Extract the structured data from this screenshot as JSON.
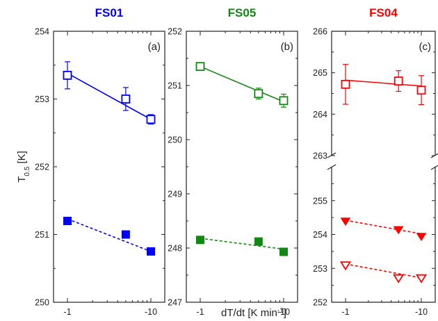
{
  "figure": {
    "ylabel_main": "T",
    "ylabel_sub": "0.5",
    "ylabel_unit": " [K]",
    "xlabel_main": "dT/dt [K min",
    "xlabel_sup": "-1",
    "xlabel_end": "]"
  },
  "chart_data": [
    {
      "type": "scatter",
      "title": "FS01",
      "panel_label": "(a)",
      "color": "#0000ff",
      "x_scale": "log",
      "x_ticks": [
        -1,
        -10
      ],
      "x_tick_labels": [
        "-1",
        "-10"
      ],
      "xlabel": "dT/dt [K min-1]",
      "ylabel": "T0.5 [K]",
      "ylim": [
        250,
        254
      ],
      "y_ticks": [
        250,
        251,
        252,
        253,
        254
      ],
      "y_tick_labels": [
        "250",
        "251",
        "252",
        "253",
        "254"
      ],
      "series": [
        {
          "marker": "square-open",
          "line": "solid",
          "x": [
            -1,
            -5,
            -10
          ],
          "y": [
            253.35,
            253.0,
            252.7
          ],
          "yerr": [
            0.2,
            0.17,
            0.07
          ],
          "fit": [
            253.38,
            252.7
          ]
        },
        {
          "marker": "square-filled",
          "line": "dashed",
          "x": [
            -1,
            -5,
            -10
          ],
          "y": [
            251.2,
            251.0,
            250.75
          ],
          "fit": [
            251.23,
            250.75
          ]
        }
      ]
    },
    {
      "type": "scatter",
      "title": "FS05",
      "panel_label": "(b)",
      "color": "#118811",
      "x_scale": "log",
      "x_ticks": [
        -1,
        -10
      ],
      "x_tick_labels": [
        "-1",
        "-10"
      ],
      "xlabel": "dT/dt [K min-1]",
      "ylim": [
        247,
        252
      ],
      "y_ticks": [
        247,
        248,
        249,
        250,
        251,
        252
      ],
      "y_tick_labels": [
        "247",
        "248",
        "249",
        "250",
        "251",
        "252"
      ],
      "series": [
        {
          "marker": "square-open",
          "line": "solid",
          "x": [
            -1,
            -5,
            -10
          ],
          "y": [
            251.35,
            250.85,
            250.72
          ],
          "yerr": [
            0.05,
            0.1,
            0.12
          ],
          "fit": [
            251.35,
            250.7
          ]
        },
        {
          "marker": "square-filled",
          "line": "dashed",
          "x": [
            -1,
            -5,
            -10
          ],
          "y": [
            248.15,
            248.12,
            247.93
          ],
          "fit": [
            248.18,
            247.98
          ]
        }
      ]
    },
    {
      "type": "scatter",
      "title": "FS04",
      "panel_label": "(c)",
      "color": "#ff0000",
      "x_scale": "log",
      "x_ticks": [
        -1,
        -10
      ],
      "x_tick_labels": [
        "-1",
        "-10"
      ],
      "xlabel": "dT/dt [K min-1]",
      "y_axis_break": true,
      "upper_ylim": [
        263,
        266
      ],
      "upper_y_ticks": [
        263,
        264,
        265,
        266
      ],
      "upper_y_tick_labels": [
        "263",
        "264",
        "265",
        "266"
      ],
      "lower_ylim": [
        252,
        256
      ],
      "lower_y_ticks": [
        252,
        253,
        254,
        255
      ],
      "lower_y_tick_labels": [
        "252",
        "253",
        "254",
        "255"
      ],
      "series": [
        {
          "marker": "square-open",
          "line": "solid",
          "x": [
            -1,
            -5,
            -10
          ],
          "y": [
            264.72,
            264.8,
            264.58
          ],
          "yerr": [
            0.48,
            0.25,
            0.35
          ],
          "fit": [
            264.82,
            264.68
          ]
        },
        {
          "marker": "triangle-down-filled",
          "line": "dashed",
          "x": [
            -1,
            -5,
            -10
          ],
          "y": [
            254.4,
            254.15,
            253.95
          ],
          "fit": [
            254.42,
            254.02
          ]
        },
        {
          "marker": "triangle-down-open",
          "line": "dashed",
          "x": [
            -1,
            -5,
            -10
          ],
          "y": [
            253.1,
            252.72,
            252.72
          ],
          "fit": [
            253.13,
            252.72
          ]
        }
      ]
    }
  ]
}
